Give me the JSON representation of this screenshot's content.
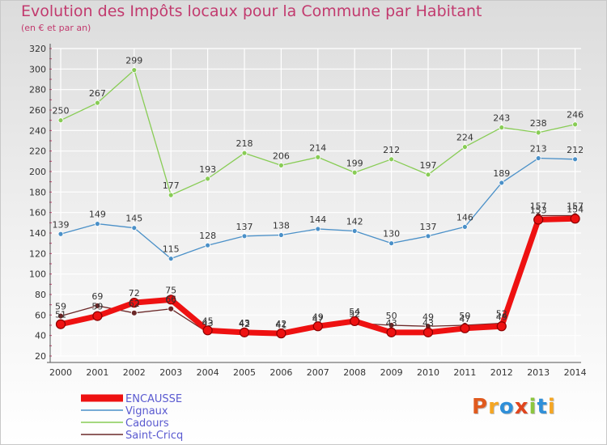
{
  "header": {
    "title": "Evolution des Impôts locaux pour la Commune par Habitant",
    "subtitle": "(en € et par an)"
  },
  "logo": {
    "letters": [
      "P",
      "r",
      "o",
      "x",
      "i",
      "t",
      "i"
    ],
    "colors": [
      "#e05a1e",
      "#f5a623",
      "#2f8fd8",
      "#e0451e",
      "#8cc63f",
      "#2f8fd8",
      "#f5a623"
    ]
  },
  "colors": {
    "ENCAUSSE": "#ee1111",
    "Vignaux": "#4a90c8",
    "Cadours": "#88cc55",
    "Saint-Cricq": "#6b2828",
    "grid": "#ffffff",
    "axis": "#555555",
    "legend_text": "#5a5ad0"
  },
  "chart_data": {
    "type": "line",
    "title": "Evolution des Impôts locaux pour la Commune par Habitant",
    "subtitle": "(en € et par an)",
    "xlabel": "",
    "ylabel": "",
    "ylim": [
      20,
      320
    ],
    "yticks": [
      20,
      40,
      60,
      80,
      100,
      120,
      140,
      160,
      180,
      200,
      220,
      240,
      260,
      280,
      300,
      320
    ],
    "grid": true,
    "legend_position": "bottom-left",
    "categories": [
      "2000",
      "2001",
      "2002",
      "2003",
      "2004",
      "2005",
      "2006",
      "2007",
      "2008",
      "2009",
      "2010",
      "2011",
      "2012",
      "2013",
      "2014"
    ],
    "series": [
      {
        "name": "Cadours",
        "values": [
          250,
          267,
          299,
          177,
          193,
          218,
          206,
          214,
          199,
          212,
          197,
          224,
          243,
          238,
          246
        ]
      },
      {
        "name": "Vignaux",
        "values": [
          139,
          149,
          145,
          115,
          128,
          137,
          138,
          144,
          142,
          130,
          137,
          146,
          189,
          213,
          212
        ]
      },
      {
        "name": "Saint-Cricq",
        "values": [
          59,
          69,
          62,
          66,
          43,
          42,
          41,
          47,
          52,
          50,
          49,
          50,
          52,
          157,
          157
        ]
      },
      {
        "name": "ENCAUSSE",
        "values": [
          51,
          59,
          72,
          75,
          45,
          43,
          42,
          49,
          54,
          43,
          43,
          47,
          49,
          153,
          154
        ]
      }
    ]
  }
}
